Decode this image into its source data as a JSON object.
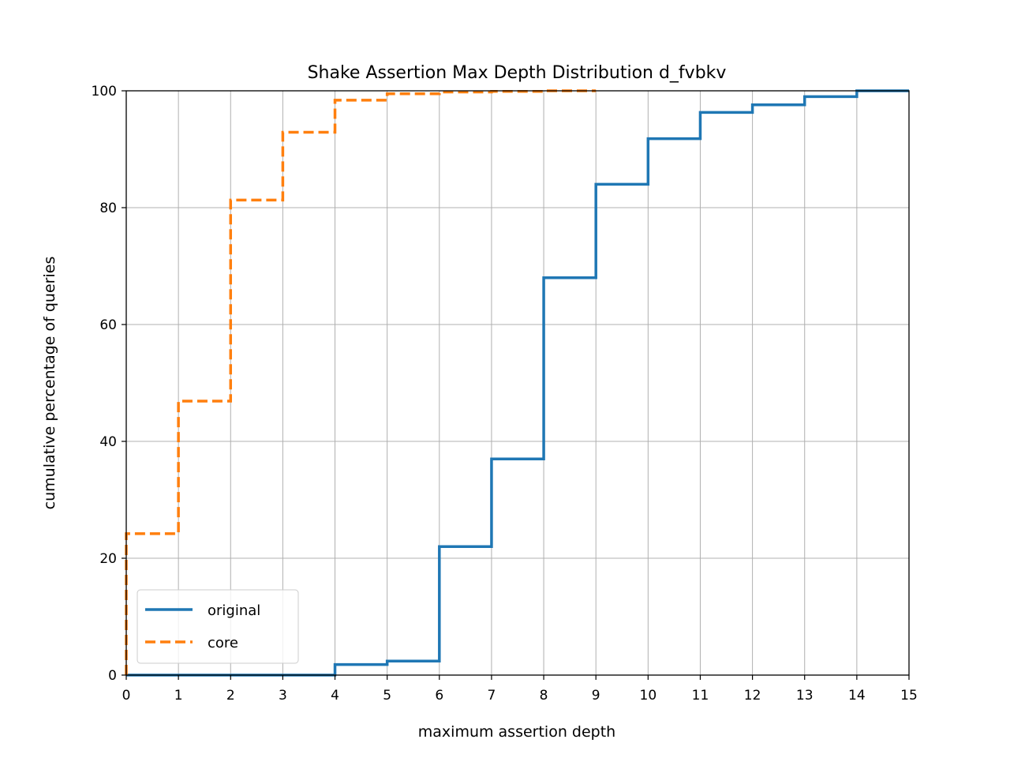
{
  "chart_data": {
    "type": "line",
    "step": "post",
    "title": "Shake Assertion Max Depth Distribution d_fvbkv",
    "xlabel": "maximum assertion depth",
    "ylabel": "cumulative percentage of queries",
    "xlim": [
      0,
      15
    ],
    "ylim": [
      0,
      100
    ],
    "xticks": [
      0,
      1,
      2,
      3,
      4,
      5,
      6,
      7,
      8,
      9,
      10,
      11,
      12,
      13,
      14,
      15
    ],
    "yticks": [
      0,
      20,
      40,
      60,
      80,
      100
    ],
    "grid": true,
    "legend": "lower-left",
    "series": [
      {
        "name": "original",
        "color": "#1f77b4",
        "style": "solid",
        "x": [
          0,
          1,
          2,
          3,
          4,
          5,
          6,
          7,
          8,
          9,
          10,
          11,
          12,
          13,
          14,
          15
        ],
        "y": [
          0,
          0,
          0,
          0,
          1.8,
          2.4,
          22,
          37,
          68,
          84,
          91.8,
          96.3,
          97.6,
          99,
          100,
          100
        ]
      },
      {
        "name": "core",
        "color": "#ff7f0e",
        "style": "dashed",
        "x": [
          0,
          1,
          2,
          3,
          4,
          5,
          6,
          7,
          8,
          9
        ],
        "y": [
          24.2,
          46.9,
          81.3,
          92.9,
          98.4,
          99.5,
          99.8,
          99.9,
          100,
          100
        ]
      }
    ]
  }
}
